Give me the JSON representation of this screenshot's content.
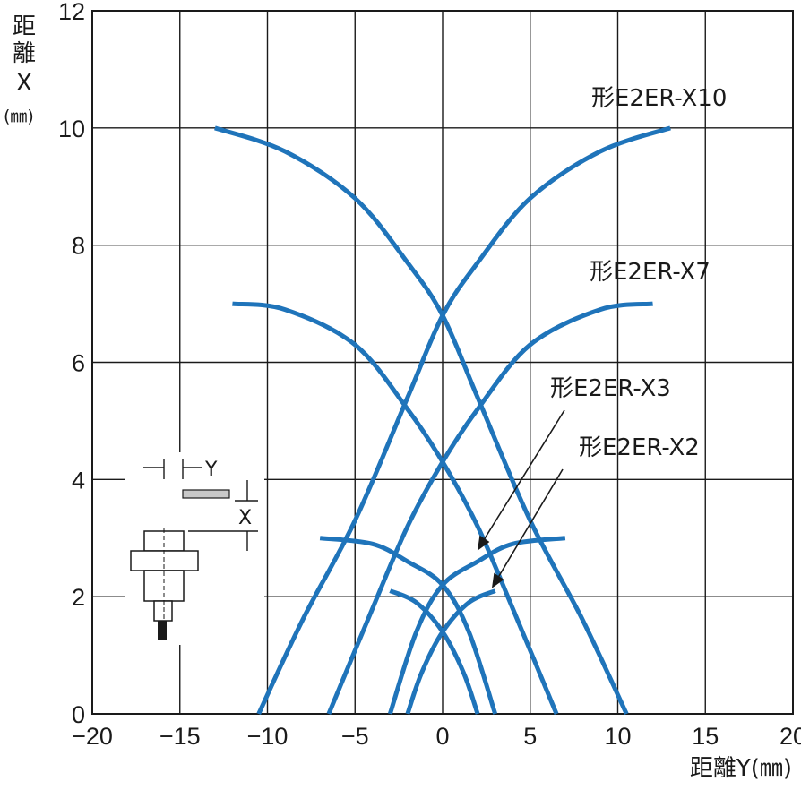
{
  "chart_data": {
    "type": "line",
    "xlabel": "距離Y(㎜)",
    "ylabel_lines": [
      "距",
      "離",
      "X",
      "(㎜)"
    ],
    "xlim": [
      -20,
      20
    ],
    "ylim": [
      0,
      12
    ],
    "x_ticks": [
      -20,
      -15,
      -10,
      -5,
      0,
      5,
      10,
      15,
      20
    ],
    "x_tick_labels": [
      "−20",
      "−15",
      "−10",
      "−5",
      "0",
      "5",
      "10",
      "15",
      "20"
    ],
    "y_ticks": [
      0,
      2,
      4,
      6,
      8,
      10,
      12
    ],
    "y_tick_labels": [
      "0",
      "2",
      "4",
      "6",
      "8",
      "10",
      "12"
    ],
    "grid": true,
    "line_color": "#1f74ba",
    "series": [
      {
        "name": "形E2ER-X10",
        "left": [
          [
            -13,
            10.0
          ],
          [
            -9,
            9.6
          ],
          [
            -5,
            8.8
          ],
          [
            -2,
            7.7
          ],
          [
            0,
            6.8
          ],
          [
            2,
            5.4
          ],
          [
            5,
            3.3
          ],
          [
            8,
            1.6
          ],
          [
            10.5,
            0
          ]
        ],
        "right": [
          [
            13,
            10.0
          ],
          [
            9,
            9.6
          ],
          [
            5,
            8.8
          ],
          [
            2,
            7.7
          ],
          [
            0,
            6.8
          ],
          [
            -2,
            5.4
          ],
          [
            -5,
            3.3
          ],
          [
            -8,
            1.6
          ],
          [
            -10.5,
            0
          ]
        ]
      },
      {
        "name": "形E2ER-X7",
        "left": [
          [
            -12,
            7.0
          ],
          [
            -9,
            6.9
          ],
          [
            -5,
            6.3
          ],
          [
            -2,
            5.2
          ],
          [
            0,
            4.3
          ],
          [
            2,
            3.2
          ],
          [
            4,
            1.8
          ],
          [
            6.5,
            0
          ]
        ],
        "right": [
          [
            12,
            7.0
          ],
          [
            9,
            6.9
          ],
          [
            5,
            6.3
          ],
          [
            2,
            5.2
          ],
          [
            0,
            4.3
          ],
          [
            -2,
            3.2
          ],
          [
            -4,
            1.8
          ],
          [
            -6.5,
            0
          ]
        ]
      },
      {
        "name": "形E2ER-X3",
        "left": [
          [
            -7,
            3.0
          ],
          [
            -4,
            2.9
          ],
          [
            -2,
            2.6
          ],
          [
            0,
            2.2
          ],
          [
            1.5,
            1.4
          ],
          [
            3,
            0
          ]
        ],
        "right": [
          [
            7,
            3.0
          ],
          [
            4,
            2.9
          ],
          [
            2,
            2.6
          ],
          [
            0,
            2.2
          ],
          [
            -1.5,
            1.4
          ],
          [
            -3,
            0
          ]
        ]
      },
      {
        "name": "形E2ER-X2",
        "left": [
          [
            -3,
            2.1
          ],
          [
            -1.5,
            1.9
          ],
          [
            0,
            1.4
          ],
          [
            1.2,
            0.7
          ],
          [
            2,
            0
          ]
        ],
        "right": [
          [
            3,
            2.1
          ],
          [
            1.5,
            1.9
          ],
          [
            0,
            1.4
          ],
          [
            -1.2,
            0.7
          ],
          [
            -2,
            0
          ]
        ]
      }
    ],
    "diagram_labels": {
      "y_arrow": "Y",
      "x_arrow": "X"
    }
  }
}
